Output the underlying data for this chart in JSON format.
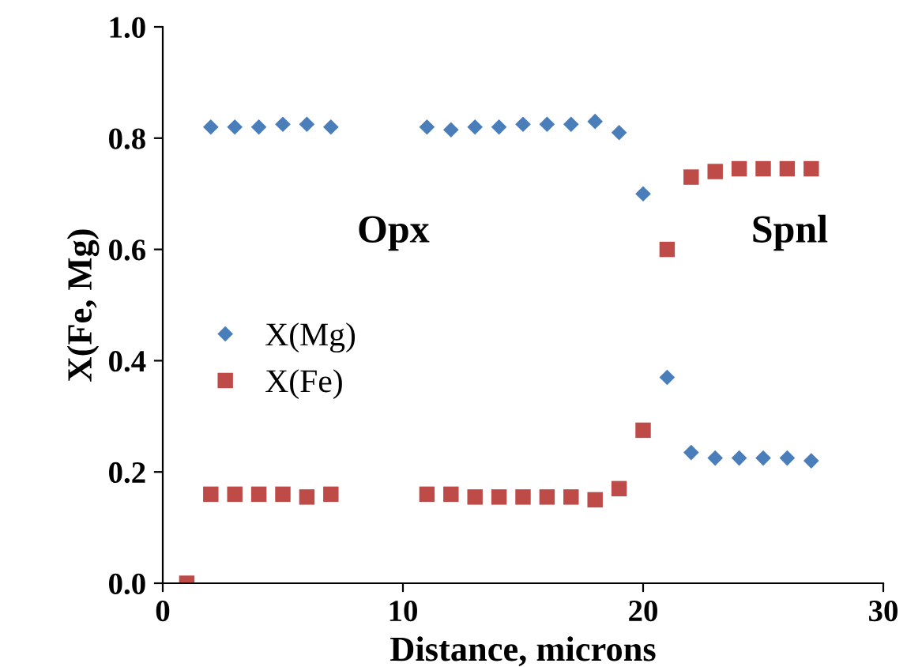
{
  "chart_data": {
    "type": "scatter",
    "xlabel": "Distance, microns",
    "ylabel": "X(Fe, Mg)",
    "xlim": [
      0,
      30
    ],
    "xticks": [
      0,
      10,
      20,
      30
    ],
    "ylim": [
      0,
      1
    ],
    "yticks": [
      {
        "value": 0,
        "label": "0.0"
      },
      {
        "value": 0.2,
        "label": "0.2"
      },
      {
        "value": 0.4,
        "label": "0.4"
      },
      {
        "value": 0.6,
        "label": "0.6"
      },
      {
        "value": 0.8,
        "label": "0.8"
      },
      {
        "value": 1,
        "label": "1.0"
      }
    ],
    "grid": false,
    "legend": "left",
    "annotations": [
      "Opx",
      "Spnl"
    ],
    "series": [
      {
        "name": "X(Mg)",
        "color": "#4a7ebb",
        "marker": "diamond",
        "x": [
          2,
          3,
          4,
          5,
          6,
          7,
          11,
          12,
          13,
          14,
          15,
          16,
          17,
          18,
          19,
          20,
          21,
          22,
          23,
          24,
          25,
          26,
          27
        ],
        "values": [
          0.82,
          0.82,
          0.82,
          0.825,
          0.825,
          0.82,
          0.82,
          0.815,
          0.82,
          0.82,
          0.825,
          0.825,
          0.825,
          0.83,
          0.81,
          0.7,
          0.37,
          0.235,
          0.225,
          0.225,
          0.225,
          0.225,
          0.22
        ]
      },
      {
        "name": "X(Fe)",
        "color": "#be4b48",
        "marker": "square",
        "x": [
          1,
          2,
          3,
          4,
          5,
          6,
          7,
          11,
          12,
          13,
          14,
          15,
          16,
          17,
          18,
          19,
          20,
          21,
          22,
          23,
          24,
          25,
          26,
          27
        ],
        "values": [
          0.0,
          0.16,
          0.16,
          0.16,
          0.16,
          0.155,
          0.16,
          0.16,
          0.16,
          0.155,
          0.155,
          0.155,
          0.155,
          0.155,
          0.15,
          0.17,
          0.275,
          0.6,
          0.73,
          0.74,
          0.745,
          0.745,
          0.745,
          0.745
        ]
      }
    ]
  }
}
